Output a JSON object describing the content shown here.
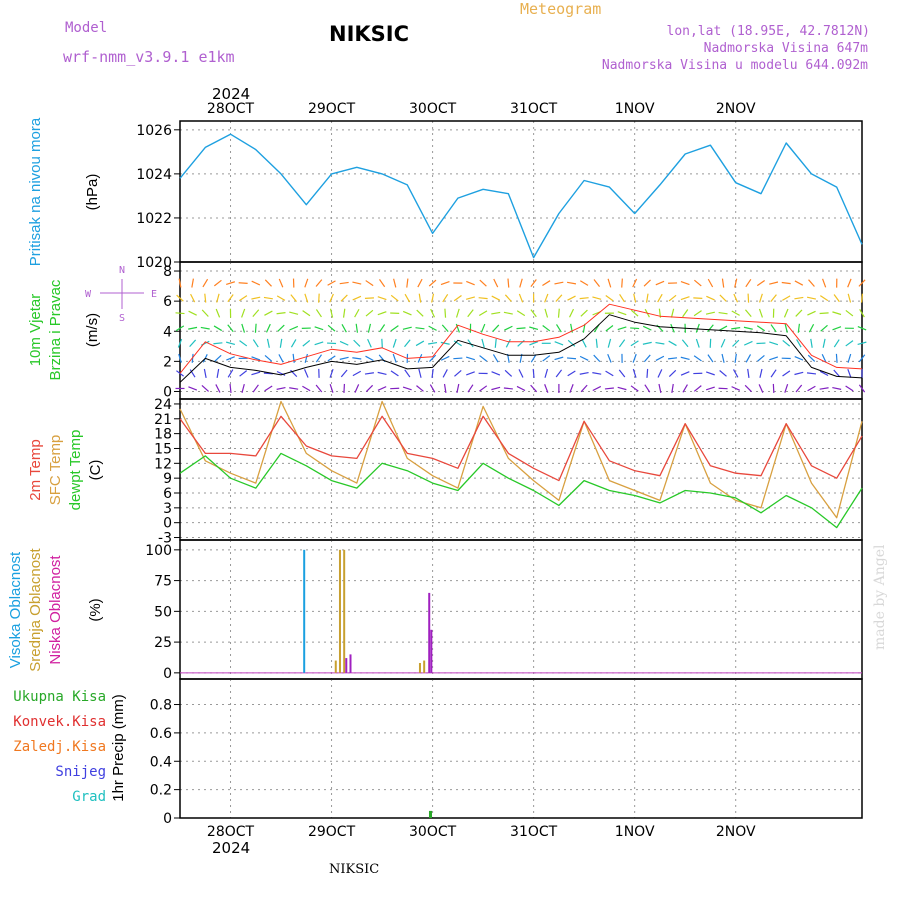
{
  "header": {
    "model_label": "Model",
    "model_name": "wrf-nmm_v3.9.1 e1km",
    "station": "NIKSIC",
    "product": "Meteogram",
    "coords": "lon,lat (18.95E, 42.7812N)",
    "altitude": "Nadmorska Visina 647m",
    "model_altitude": "Nadmorska Visina u modelu 644.092m",
    "year_top": "2024",
    "year_bottom": "2024",
    "footer_station": "NIKSIC",
    "watermark": "made by Angel"
  },
  "colors": {
    "pressure": "#1ea0e0",
    "temp2m": "#e8483c",
    "sfc_temp": "#d8a040",
    "dewpt": "#28c828",
    "high_cloud": "#1aa0e0",
    "mid_cloud": "#c8a030",
    "low_cloud": "#a020c0",
    "precip_total": "#28a828",
    "precip_conv": "#e03030",
    "precip_frozen": "#f07820",
    "snow": "#4040e0",
    "graupel": "#20c0c0",
    "wind_speed": "#000000",
    "wind_gust": "#ff3020",
    "header_purple": "#b060d0",
    "header_orange": "#e8b050"
  },
  "chart_data": [
    {
      "type": "line",
      "id": "pressure",
      "ylabel": [
        "Pritisak na nivou mora",
        "(hPa)"
      ],
      "ylim": [
        1020,
        1026.4
      ],
      "yticks": [
        1020,
        1022,
        1024,
        1026
      ],
      "x_dates": [
        "28OCT",
        "29OCT",
        "30OCT",
        "31OCT",
        "1NOV",
        "2NOV"
      ],
      "x_hours": [
        0,
        6,
        12,
        18,
        24,
        30,
        36,
        42,
        48,
        54,
        60,
        66,
        72,
        78,
        84,
        90,
        96,
        102,
        108,
        114,
        120,
        126,
        132,
        138,
        144,
        150,
        156,
        162
      ],
      "series": [
        {
          "values": [
            1023.8,
            1025.2,
            1025.8,
            1025.1,
            1024.0,
            1022.6,
            1024.0,
            1024.3,
            1024.0,
            1023.5,
            1021.3,
            1022.9,
            1023.3,
            1023.1,
            1020.2,
            1022.2,
            1023.7,
            1023.4,
            1022.2,
            1023.5,
            1024.9,
            1025.3,
            1023.6,
            1023.1,
            1025.4,
            1024.0,
            1023.4,
            1020.8
          ]
        }
      ]
    },
    {
      "type": "line",
      "id": "wind",
      "ylabel": [
        "10m Vjetar",
        "Brzina i Pravac",
        "(m/s)"
      ],
      "compass": [
        "N",
        "W",
        "E",
        "S"
      ],
      "ylim": [
        -0.5,
        8.6
      ],
      "yticks": [
        0,
        2,
        4,
        6,
        8
      ],
      "series": [
        {
          "name": "speed",
          "values": [
            0.6,
            2.2,
            1.6,
            1.4,
            1.1,
            1.6,
            2.0,
            1.8,
            2.1,
            1.5,
            1.6,
            3.4,
            2.9,
            2.4,
            2.4,
            2.6,
            3.5,
            5.1,
            4.6,
            4.3,
            4.2,
            4.1,
            4.0,
            3.9,
            3.7,
            1.6,
            1.0,
            0.9
          ]
        },
        {
          "name": "gust",
          "values": [
            1.2,
            3.3,
            2.5,
            2.1,
            1.8,
            2.3,
            2.8,
            2.6,
            2.9,
            2.2,
            2.3,
            4.4,
            3.8,
            3.3,
            3.3,
            3.6,
            4.4,
            5.8,
            5.4,
            5.0,
            4.9,
            4.8,
            4.7,
            4.6,
            4.5,
            2.4,
            1.6,
            1.5
          ]
        }
      ]
    },
    {
      "type": "line",
      "id": "temperature",
      "ylabel": [
        "2m Temp",
        "SFC Temp",
        "dewpt Temp",
        "(C)"
      ],
      "ylim": [
        -3.5,
        25
      ],
      "yticks": [
        -3,
        0,
        3,
        6,
        9,
        12,
        15,
        18,
        21,
        24
      ],
      "series": [
        {
          "name": "2m Temp",
          "values": [
            21.0,
            14.0,
            14.0,
            13.5,
            21.5,
            15.5,
            13.5,
            13.0,
            21.5,
            14.0,
            13.0,
            11.0,
            21.5,
            14.0,
            11.0,
            8.5,
            20.5,
            12.5,
            10.5,
            9.5,
            20.0,
            11.5,
            10.0,
            9.5,
            20.0,
            11.5,
            9.0,
            17.5
          ]
        },
        {
          "name": "SFC Temp",
          "values": [
            23.0,
            12.5,
            10.0,
            8.0,
            24.5,
            14.0,
            10.5,
            8.0,
            24.5,
            13.0,
            9.5,
            7.0,
            23.5,
            13.0,
            8.5,
            4.5,
            20.5,
            8.5,
            6.5,
            4.5,
            20.0,
            8.0,
            4.5,
            3.0,
            20.0,
            8.0,
            1.0,
            20.5
          ]
        },
        {
          "name": "dewpt Temp",
          "values": [
            10.0,
            13.5,
            9.0,
            7.0,
            14.0,
            11.5,
            8.5,
            7.0,
            12.0,
            10.5,
            8.0,
            6.5,
            12.0,
            9.0,
            6.5,
            3.5,
            8.5,
            6.5,
            5.5,
            4.0,
            6.5,
            6.0,
            5.0,
            2.0,
            5.5,
            3.0,
            -1.0,
            7.0
          ]
        }
      ]
    },
    {
      "type": "bar",
      "id": "cloud",
      "ylabel": [
        "Visoka Oblacnost",
        "Srednja Oblacnost",
        "Niska Oblacnost",
        "(%)"
      ],
      "ylim": [
        -5,
        108
      ],
      "yticks": [
        0,
        25,
        50,
        75,
        100
      ],
      "series": [
        {
          "name": "Visoka Oblacnost",
          "bars": [
            [
              29.5,
              100
            ]
          ]
        },
        {
          "name": "Srednja Oblacnost",
          "bars": [
            [
              37.0,
              10
            ],
            [
              38.0,
              100
            ],
            [
              39.0,
              100
            ],
            [
              57.0,
              8
            ],
            [
              58.0,
              10
            ]
          ]
        },
        {
          "name": "Niska Oblacnost",
          "bars": [
            [
              39.5,
              12
            ],
            [
              40.5,
              15
            ],
            [
              59.2,
              65
            ],
            [
              59.7,
              35
            ]
          ]
        }
      ]
    },
    {
      "type": "bar",
      "id": "precip",
      "ylabel": [
        "1hr Precip (mm)"
      ],
      "legend": [
        "Ukupna Kisa",
        "Konvek.Kisa",
        "Zaledj.Kisa",
        "Snijeg",
        "Grad"
      ],
      "ylim": [
        0,
        0.98
      ],
      "yticks": [
        0,
        0.2,
        0.4,
        0.6,
        0.8
      ],
      "series": [
        {
          "name": "Ukupna Kisa",
          "bars": [
            [
              59.5,
              0.05
            ]
          ]
        }
      ]
    }
  ]
}
